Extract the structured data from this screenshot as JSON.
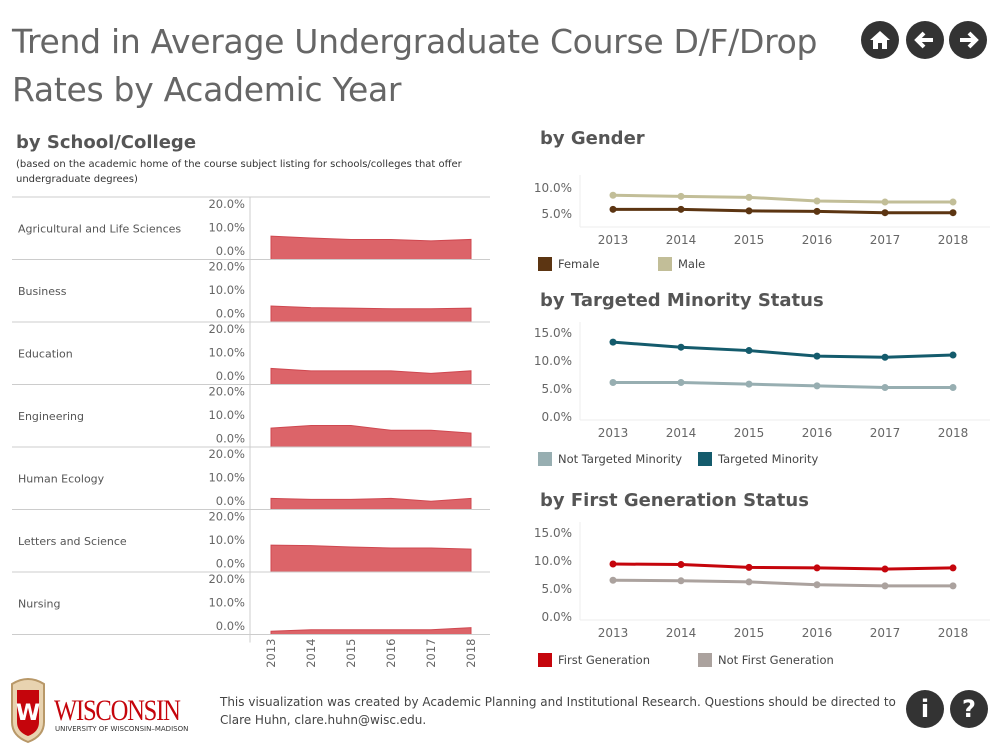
{
  "header": {
    "title": "Trend in Average Undergraduate Course D/F/Drop Rates by Academic Year",
    "nav": [
      {
        "icon": "home-icon"
      },
      {
        "icon": "arrow-left-icon"
      },
      {
        "icon": "arrow-right-icon"
      }
    ]
  },
  "school": {
    "title": "by School/College",
    "subtitle": "(based on the academic home of the course subject listing for schools/colleges that offer undergraduate degrees)"
  },
  "footer": {
    "logo_text": "WISCONSIN",
    "logo_subtext": "UNIVERSITY OF WISCONSIN–MADISON",
    "text": "This visualization was created by Academic Planning and Institutional Research. Questions should be directed to Clare Huhn, clare.huhn@wisc.edu.",
    "info_label": "i",
    "help_label": "?"
  },
  "chart_data": [
    {
      "type": "area",
      "title": "by School/College",
      "categories": [
        "2013",
        "2014",
        "2015",
        "2016",
        "2017",
        "2018"
      ],
      "ylim": [
        -3.5,
        23
      ],
      "yticks": [
        "0.0%",
        "10.0%",
        "20.0%"
      ],
      "color": "#dc6469",
      "series": [
        {
          "name": "Agricultural and Life Sciences",
          "values": [
            6.4,
            5.6,
            5.0,
            5.0,
            4.4,
            5.0
          ]
        },
        {
          "name": "Business",
          "values": [
            3.3,
            2.6,
            2.4,
            2.1,
            2.1,
            2.4
          ]
        },
        {
          "name": "Education",
          "values": [
            3.3,
            2.3,
            2.3,
            2.3,
            1.2,
            2.3
          ]
        },
        {
          "name": "Engineering",
          "values": [
            4.5,
            5.6,
            5.6,
            3.6,
            3.6,
            2.4
          ]
        },
        {
          "name": "Human Ecology",
          "values": [
            1.2,
            0.8,
            0.8,
            1.2,
            0.0,
            1.2
          ]
        },
        {
          "name": "Letters and Science",
          "values": [
            7.9,
            7.7,
            7.1,
            6.7,
            6.7,
            6.2
          ]
        },
        {
          "name": "Nursing",
          "values": [
            -2.1,
            -1.5,
            -1.5,
            -1.5,
            -1.5,
            -0.6
          ]
        }
      ]
    },
    {
      "type": "line",
      "title": "by Gender",
      "categories": [
        "2013",
        "2014",
        "2015",
        "2016",
        "2017",
        "2018"
      ],
      "yticks": [
        "5.0%",
        "10.0%"
      ],
      "tickvals": [
        5,
        10
      ],
      "ylim": [
        2.5,
        12.5
      ],
      "series": [
        {
          "name": "Female",
          "color": "#5c3512",
          "values": [
            5.9,
            5.9,
            5.6,
            5.5,
            5.25,
            5.25
          ]
        },
        {
          "name": "Male",
          "color": "#c2be98",
          "values": [
            8.6,
            8.4,
            8.2,
            7.5,
            7.3,
            7.3
          ]
        }
      ]
    },
    {
      "type": "line",
      "title": "by Targeted Minority Status",
      "categories": [
        "2013",
        "2014",
        "2015",
        "2016",
        "2017",
        "2018"
      ],
      "yticks": [
        "0.0%",
        "5.0%",
        "10.0%",
        "15.0%"
      ],
      "tickvals": [
        0,
        5,
        10,
        15
      ],
      "ylim": [
        -0.5,
        17
      ],
      "series": [
        {
          "name": "Not Targeted Minority",
          "color": "#97aeb1",
          "values": [
            6.2,
            6.2,
            5.9,
            5.6,
            5.3,
            5.3
          ]
        },
        {
          "name": "Targeted Minority",
          "color": "#145b6c",
          "values": [
            13.4,
            12.5,
            11.9,
            10.9,
            10.7,
            11.1
          ]
        }
      ]
    },
    {
      "type": "line",
      "title": "by First Generation Status",
      "categories": [
        "2013",
        "2014",
        "2015",
        "2016",
        "2017",
        "2018"
      ],
      "yticks": [
        "0.0%",
        "5.0%",
        "10.0%",
        "15.0%"
      ],
      "tickvals": [
        0,
        5,
        10,
        15
      ],
      "ylim": [
        -0.5,
        17
      ],
      "series": [
        {
          "name": "First Generation",
          "color": "#c5050c",
          "values": [
            9.5,
            9.4,
            8.9,
            8.8,
            8.6,
            8.8
          ]
        },
        {
          "name": "Not First Generation",
          "color": "#aba29e",
          "values": [
            6.6,
            6.5,
            6.3,
            5.8,
            5.6,
            5.6
          ]
        }
      ]
    }
  ]
}
